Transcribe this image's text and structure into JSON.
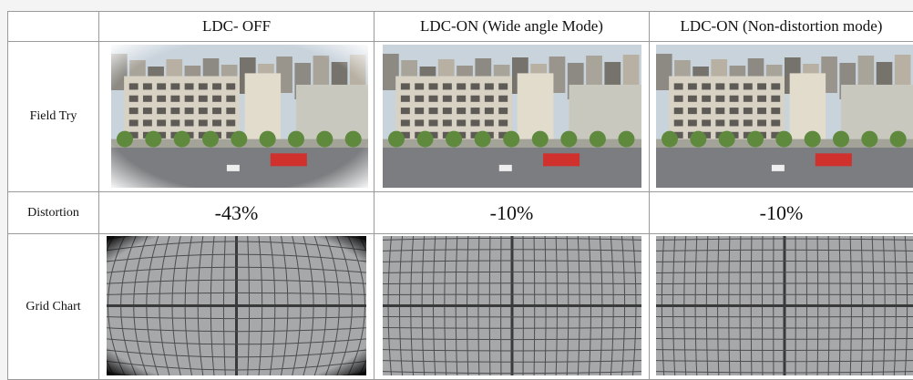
{
  "table": {
    "columns": [
      "LDC- OFF",
      "LDC-ON (Wide angle Mode)",
      "LDC-ON (Non-distortion mode)"
    ],
    "rows": [
      {
        "label": "Field Try"
      },
      {
        "label": "Distortion",
        "values": [
          "-43%",
          "-10%",
          "-10%"
        ]
      },
      {
        "label": "Grid Chart"
      }
    ]
  }
}
